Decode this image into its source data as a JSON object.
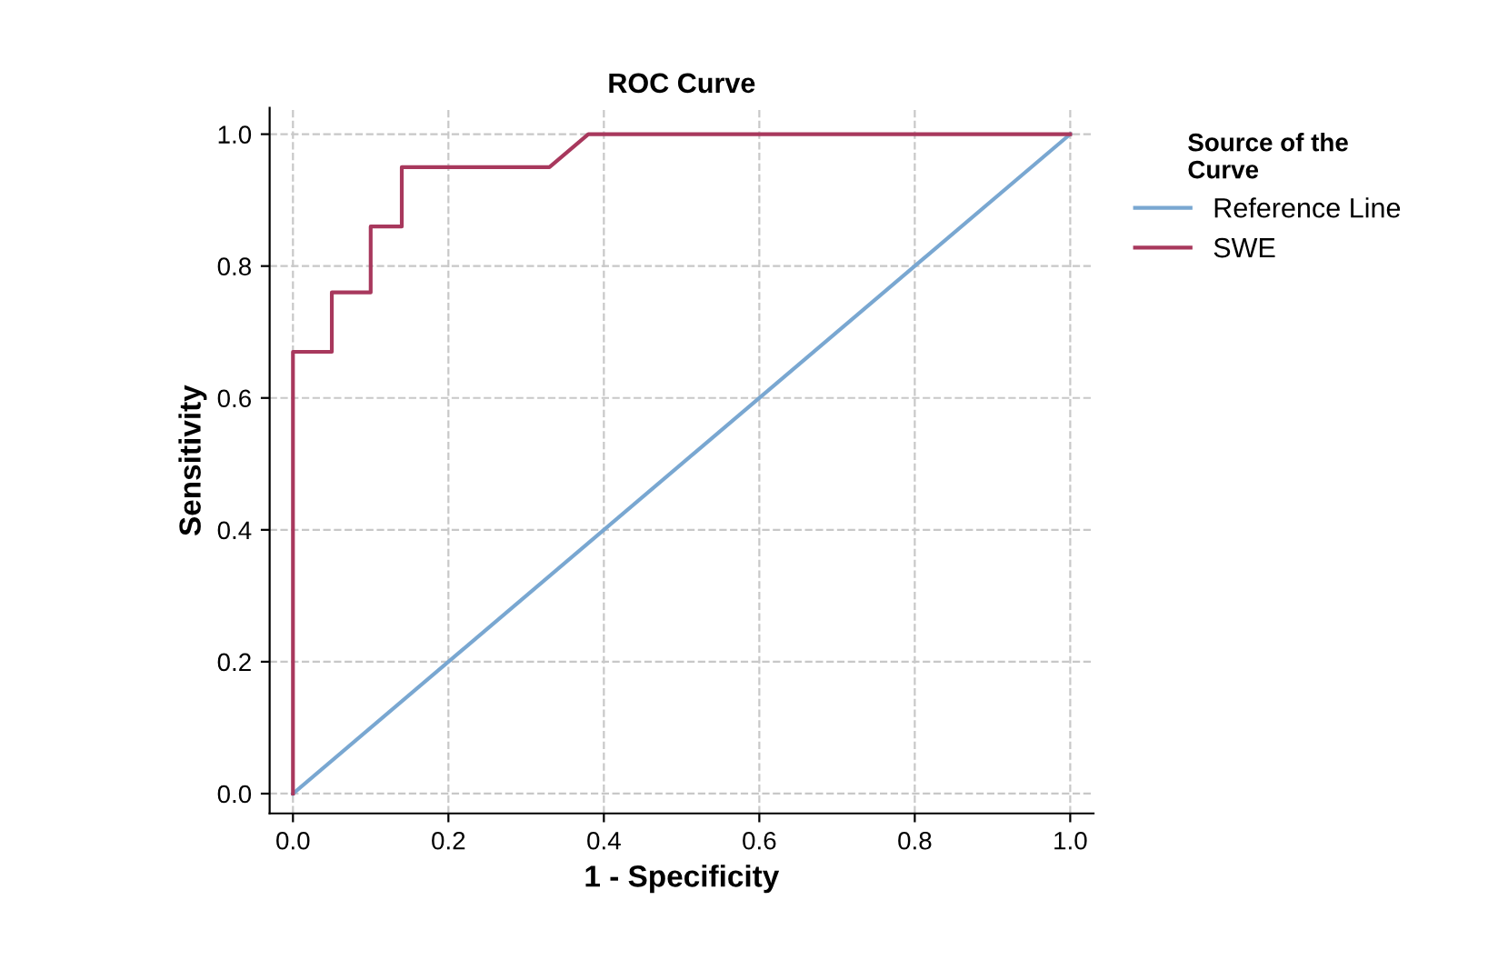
{
  "chart_data": {
    "type": "line",
    "title": "ROC Curve",
    "xlabel": "1 - Specificity",
    "ylabel": "Sensitivity",
    "legend_title": "Source of the\nCurve",
    "xlim": [
      -0.03,
      1.03
    ],
    "ylim": [
      -0.03,
      1.04
    ],
    "xticks": [
      {
        "value": 0,
        "label": "0.0"
      },
      0.2,
      0.4,
      0.6,
      0.8,
      {
        "value": 1,
        "label": "1.0"
      }
    ],
    "yticks": [
      {
        "value": 0,
        "label": "0.0"
      },
      0.2,
      0.4,
      0.6,
      0.8,
      {
        "value": 1,
        "label": "1.0"
      }
    ],
    "grid": true,
    "legend": "top right",
    "line_style": "solid",
    "marker": "none",
    "series": [
      {
        "name": "Reference Line",
        "color": "#79a7d1",
        "x": [
          0,
          1
        ],
        "values": [
          0,
          1
        ]
      },
      {
        "name": "SWE",
        "color": "#a8385d",
        "x": [
          0,
          0,
          0.05,
          0.05,
          0.1,
          0.1,
          0.14,
          0.14,
          0.33,
          0.38,
          1
        ],
        "values": [
          0,
          0.67,
          0.67,
          0.76,
          0.76,
          0.86,
          0.86,
          0.95,
          0.95,
          1,
          1
        ]
      }
    ]
  }
}
